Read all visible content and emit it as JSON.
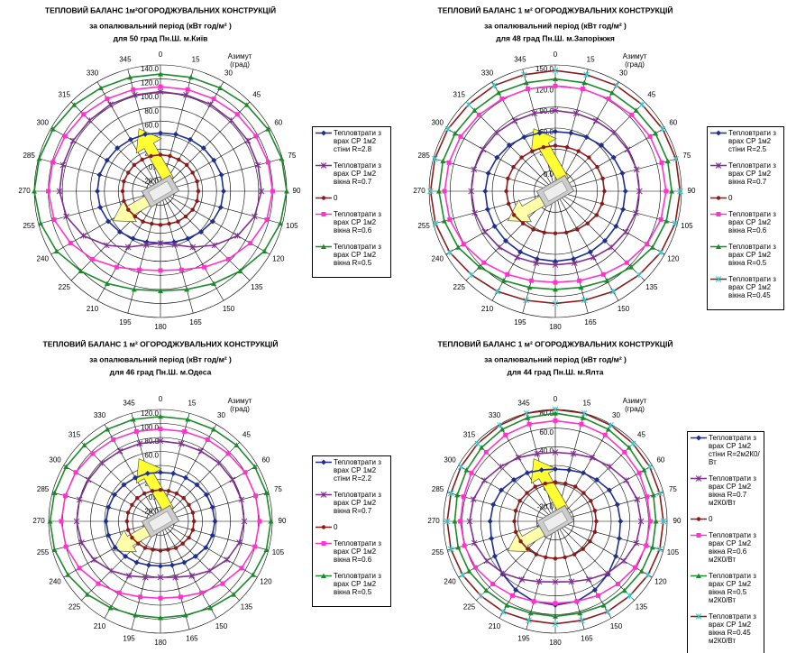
{
  "chart_data": [
    {
      "type": "radar",
      "title": "ТЕПЛОВИЙ БАЛАНС 1м²ОГОРОДЖУВАЛЬНИХ КОНСТРУКЦІЙ",
      "subtitle": "за опалювальний період (кВт год/м² )",
      "location": "для 50 град Пн.Ш. м.Київ",
      "angle_label": "Азимут (град)",
      "grid": true,
      "categories": [
        "0",
        "15",
        "30",
        "45",
        "60",
        "75",
        "90",
        "105",
        "120",
        "135",
        "150",
        "165",
        "180",
        "195",
        "210",
        "225",
        "240",
        "255",
        "270",
        "285",
        "300",
        "315",
        "330",
        "345"
      ],
      "ylim": [
        -40,
        140
      ],
      "yticks": [
        {
          "value": -40,
          "label": "-40.0"
        },
        {
          "value": -20,
          "label": "-20.0"
        },
        {
          "value": 0,
          "label": "0.0"
        },
        {
          "value": 20,
          "label": "20.0"
        },
        {
          "value": 40,
          "label": "40.0"
        },
        {
          "value": 60,
          "label": "60.0"
        },
        {
          "value": 80,
          "label": "80.0"
        },
        {
          "value": 100,
          "label": "100.0"
        },
        {
          "value": 120,
          "label": "120.0"
        },
        {
          "value": 140,
          "label": "140.0"
        }
      ],
      "series": [
        {
          "name": "Тепловтрати з врах СР 1м2 стіни R=2.8",
          "color": "#1f2f8f",
          "marker": "diamond",
          "values": [
            43,
            44,
            45,
            47,
            48,
            50,
            50,
            49,
            46,
            42,
            38,
            35,
            34,
            35,
            38,
            42,
            46,
            49,
            50,
            50,
            48,
            47,
            45,
            44
          ]
        },
        {
          "name": "Тепловтрати з врах СР 1м2 вікна R=0.7",
          "color": "#7f2f8f",
          "marker": "asterisk",
          "values": [
            102,
            102,
            103,
            103,
            104,
            104,
            104,
            99,
            87,
            69,
            52,
            39,
            34,
            39,
            52,
            69,
            87,
            99,
            104,
            104,
            104,
            103,
            103,
            102
          ]
        },
        {
          "name": "0",
          "color": "#8b1a1a",
          "marker": "circle",
          "values": [
            12,
            12,
            12,
            13,
            13,
            14,
            14,
            14,
            13,
            11,
            10,
            8,
            8,
            8,
            10,
            11,
            13,
            14,
            14,
            14,
            13,
            13,
            12,
            12
          ]
        },
        {
          "name": "Тепловтрати з врах СР 1м2 вікна R=0.6",
          "color": "#ff33cc",
          "marker": "square",
          "values": [
            109,
            110,
            112,
            115,
            117,
            119,
            120,
            117,
            108,
            97,
            85,
            76,
            73,
            76,
            85,
            97,
            108,
            117,
            120,
            119,
            117,
            115,
            112,
            110
          ]
        },
        {
          "name": "Тепловтрати з врах СР 1м2 вікна R=0.5",
          "color": "#1a8a2a",
          "marker": "triangle",
          "values": [
            127,
            128,
            130,
            134,
            137,
            139,
            140,
            137,
            131,
            121,
            112,
            105,
            102,
            105,
            112,
            121,
            131,
            137,
            140,
            139,
            137,
            134,
            130,
            128
          ]
        }
      ]
    },
    {
      "type": "radar",
      "title": "ТЕПЛОВИЙ БАЛАНС 1 м² ОГОРОДЖУВАЛЬНИХ КОНСТРУКЦІЙ",
      "subtitle": "за опалювальний період (кВт год/м² )",
      "location": "для 48 град Пн.Ш. м.Запоріжжя",
      "angle_label": "Азимут (град)",
      "grid": true,
      "categories": [
        "0",
        "15",
        "30",
        "45",
        "60",
        "75",
        "90",
        "105",
        "120",
        "135",
        "150",
        "165",
        "180",
        "195",
        "210",
        "225",
        "240",
        "255",
        "270",
        "285",
        "300",
        "315",
        "330",
        "345"
      ],
      "ylim": [
        -30,
        150
      ],
      "yticks": [
        {
          "value": -30,
          "label": "-30.0"
        },
        {
          "value": 0,
          "label": "0.0"
        },
        {
          "value": 30,
          "label": "30.0"
        },
        {
          "value": 60,
          "label": "60.0"
        },
        {
          "value": 90,
          "label": "90.0"
        },
        {
          "value": 120,
          "label": "120.0"
        },
        {
          "value": 150,
          "label": "150.0"
        }
      ],
      "series": [
        {
          "name": "Тепловтрати з врах СР 1м2 стіни R=2.5",
          "color": "#1f2f8f",
          "marker": "diamond",
          "values": [
            55,
            56,
            59,
            63,
            66,
            69,
            70,
            70,
            70,
            70,
            70,
            70,
            70,
            70,
            70,
            70,
            70,
            70,
            70,
            69,
            66,
            63,
            59,
            56
          ]
        },
        {
          "name": "Тепловтрати з врах СР 1м2 вікна R=0.7",
          "color": "#7f2f8f",
          "marker": "asterisk",
          "values": [
            85,
            85,
            86,
            88,
            89,
            90,
            90,
            89,
            86,
            83,
            79,
            76,
            75,
            76,
            79,
            83,
            86,
            89,
            90,
            90,
            89,
            88,
            86,
            85
          ]
        },
        {
          "name": "0",
          "color": "#8b1a1a",
          "marker": "circle",
          "values": [
            35,
            35,
            36,
            38,
            39,
            40,
            40,
            39,
            38,
            35,
            33,
            31,
            30,
            31,
            33,
            35,
            38,
            39,
            40,
            40,
            39,
            38,
            36,
            35
          ]
        },
        {
          "name": "Тепловтрати з врах СР 1м2 вікна R=0.6",
          "color": "#ff33cc",
          "marker": "square",
          "values": [
            120,
            121,
            122,
            124,
            126,
            127,
            128,
            126,
            121,
            114,
            107,
            102,
            100,
            102,
            107,
            114,
            121,
            126,
            128,
            127,
            126,
            124,
            122,
            121
          ]
        },
        {
          "name": "Тепловтрати з врах СР 1м2 вікна R=0.5",
          "color": "#1a8a2a",
          "marker": "triangle",
          "values": [
            130,
            130,
            132,
            133,
            135,
            136,
            136,
            134,
            130,
            123,
            117,
            112,
            110,
            112,
            117,
            123,
            130,
            134,
            136,
            136,
            135,
            133,
            132,
            130
          ]
        },
        {
          "name": "Тепловтрати з врах СР 1м2 вікна R=0.45",
          "color": "#8b1a1a",
          "marker": "asterisk",
          "marker_color": "#33cccc",
          "values": [
            142,
            142,
            144,
            145,
            147,
            148,
            148,
            147,
            144,
            139,
            135,
            131,
            130,
            131,
            135,
            139,
            144,
            147,
            148,
            148,
            147,
            145,
            144,
            142
          ]
        }
      ]
    },
    {
      "type": "radar",
      "title": "ТЕПЛОВИЙ БАЛАНС 1 м² ОГОРОДЖУВАЛЬНИХ КОНСТРУКЦІЙ",
      "subtitle": "за опалювальний період (кВт год/м² )",
      "location": "для 46 град Пн.Ш. м.Одеса",
      "angle_label": "Азимут (град)",
      "grid": true,
      "categories": [
        "0",
        "15",
        "30",
        "45",
        "60",
        "75",
        "90",
        "105",
        "120",
        "135",
        "150",
        "165",
        "180",
        "195",
        "210",
        "225",
        "240",
        "255",
        "270",
        "285",
        "300",
        "315",
        "330",
        "345"
      ],
      "ylim": [
        -40,
        120
      ],
      "yticks": [
        {
          "value": -40,
          "label": "-40.0"
        },
        {
          "value": -20,
          "label": "-20.0"
        },
        {
          "value": 0,
          "label": "0.0"
        },
        {
          "value": 20,
          "label": "20.0"
        },
        {
          "value": 40,
          "label": "40.0"
        },
        {
          "value": 60,
          "label": "60.0"
        },
        {
          "value": 80,
          "label": "80.0"
        },
        {
          "value": 100,
          "label": "100.0"
        },
        {
          "value": 120,
          "label": "120.0"
        }
      ],
      "series": [
        {
          "name": "Тепловтрати з врах СР 1м2 стіни R=2.2",
          "color": "#1f2f8f",
          "marker": "diamond",
          "values": [
            30,
            31,
            32,
            34,
            36,
            37,
            38,
            37,
            35,
            31,
            28,
            25,
            24,
            25,
            28,
            31,
            35,
            37,
            38,
            37,
            36,
            34,
            32,
            31
          ]
        },
        {
          "name": "Тепловтрати з врах СР 1м2 вікна R=0.7",
          "color": "#7f2f8f",
          "marker": "asterisk",
          "values": [
            75,
            75,
            76,
            78,
            79,
            80,
            80,
            77,
            70,
            60,
            50,
            43,
            40,
            43,
            50,
            60,
            70,
            77,
            80,
            80,
            79,
            78,
            76,
            75
          ]
        },
        {
          "name": "0",
          "color": "#8b1a1a",
          "marker": "circle",
          "values": [
            5,
            5,
            6,
            7,
            7,
            8,
            8,
            8,
            7,
            5,
            4,
            2,
            2,
            2,
            4,
            5,
            7,
            8,
            8,
            8,
            7,
            7,
            6,
            5
          ]
        },
        {
          "name": "Тепловтрати з врах СР 1м2 вікна R=0.6",
          "color": "#ff33cc",
          "marker": "square",
          "values": [
            92,
            93,
            95,
            97,
            100,
            101,
            102,
            100,
            94,
            86,
            78,
            72,
            70,
            72,
            78,
            86,
            94,
            100,
            102,
            101,
            100,
            97,
            95,
            93
          ]
        },
        {
          "name": "Тепловтрати з врах СР 1м2 вікна R=0.5",
          "color": "#1a8a2a",
          "marker": "triangle",
          "values": [
            110,
            111,
            112,
            114,
            116,
            117,
            118,
            117,
            113,
            108,
            103,
            99,
            98,
            99,
            103,
            108,
            113,
            117,
            118,
            117,
            116,
            114,
            112,
            111
          ]
        }
      ]
    },
    {
      "type": "radar",
      "title": "ТЕПЛОВИЙ БАЛАНС 1 м² ОГОРОДЖУВАЛЬНИХ КОНСТРУКЦІЙ",
      "subtitle": "за опалювальний період (кВт год/м² )",
      "location": "для 44 град Пн.Ш. м.Ялта",
      "angle_label": "Азимут (град)",
      "grid": true,
      "categories": [
        "0",
        "15",
        "30",
        "45",
        "60",
        "75",
        "90",
        "105",
        "120",
        "135",
        "150",
        "165",
        "180",
        "195",
        "210",
        "225",
        "240",
        "255",
        "270",
        "285",
        "300",
        "315",
        "330",
        "345"
      ],
      "ylim": [
        -40,
        80
      ],
      "yticks": [
        {
          "value": -40,
          "label": "-40.0"
        },
        {
          "value": -20,
          "label": "-20.0"
        },
        {
          "value": 0,
          "label": "0.0"
        },
        {
          "value": 20,
          "label": "20.0"
        },
        {
          "value": 40,
          "label": "40.0"
        },
        {
          "value": 60,
          "label": "60.0"
        },
        {
          "value": 80,
          "label": "80.0"
        }
      ],
      "series": [
        {
          "name": "Тепловтрати з врах СР 1м2 стіни R=2м2К0/Вт",
          "color": "#1f2f8f",
          "marker": "diamond",
          "values": [
            16,
            17,
            20,
            23,
            27,
            29,
            30,
            31,
            35,
            40,
            45,
            49,
            50,
            49,
            45,
            40,
            35,
            31,
            30,
            29,
            27,
            23,
            20,
            17
          ]
        },
        {
          "name": "Тепловтрати з врах СР 1м2 вікна R=0.7 м2К0/Вт",
          "color": "#7f2f8f",
          "marker": "asterisk",
          "values": [
            34,
            35,
            39,
            43,
            48,
            51,
            52,
            50,
            45,
            39,
            32,
            27,
            25,
            27,
            32,
            39,
            45,
            50,
            52,
            51,
            48,
            43,
            39,
            35
          ]
        },
        {
          "name": "0",
          "color": "#8b1a1a",
          "marker": "circle",
          "values": [
            2,
            2,
            3,
            3,
            4,
            4,
            4,
            4,
            3,
            2,
            1,
            0,
            0,
            0,
            1,
            2,
            3,
            4,
            4,
            4,
            4,
            3,
            3,
            2
          ]
        },
        {
          "name": "Тепловтрати з врах СР 1м2 вікна R=0.6 м2К0/Вт",
          "color": "#ff33cc",
          "marker": "square",
          "values": [
            68,
            68,
            67,
            65,
            64,
            62,
            62,
            61,
            59,
            55,
            52,
            49,
            48,
            49,
            52,
            55,
            59,
            61,
            62,
            62,
            64,
            65,
            67,
            68
          ]
        },
        {
          "name": "Тепловтрати з врах СР 1м2 вікна R=0.5 м2К0/Вт",
          "color": "#1a8a2a",
          "marker": "triangle",
          "values": [
            76,
            75,
            74,
            72,
            70,
            69,
            68,
            68,
            67,
            65,
            64,
            62,
            62,
            62,
            64,
            65,
            67,
            68,
            68,
            69,
            70,
            72,
            74,
            75
          ]
        },
        {
          "name": "Тепловтрати з врах СР 1м2 вікна R=0.45 м2К0/Вт",
          "color": "#8b1a1a",
          "marker": "asterisk",
          "marker_color": "#33cccc",
          "values": [
            80,
            80,
            79,
            78,
            77,
            76,
            76,
            76,
            75,
            73,
            72,
            70,
            70,
            70,
            72,
            73,
            75,
            76,
            76,
            76,
            77,
            78,
            79,
            80
          ]
        }
      ]
    }
  ]
}
